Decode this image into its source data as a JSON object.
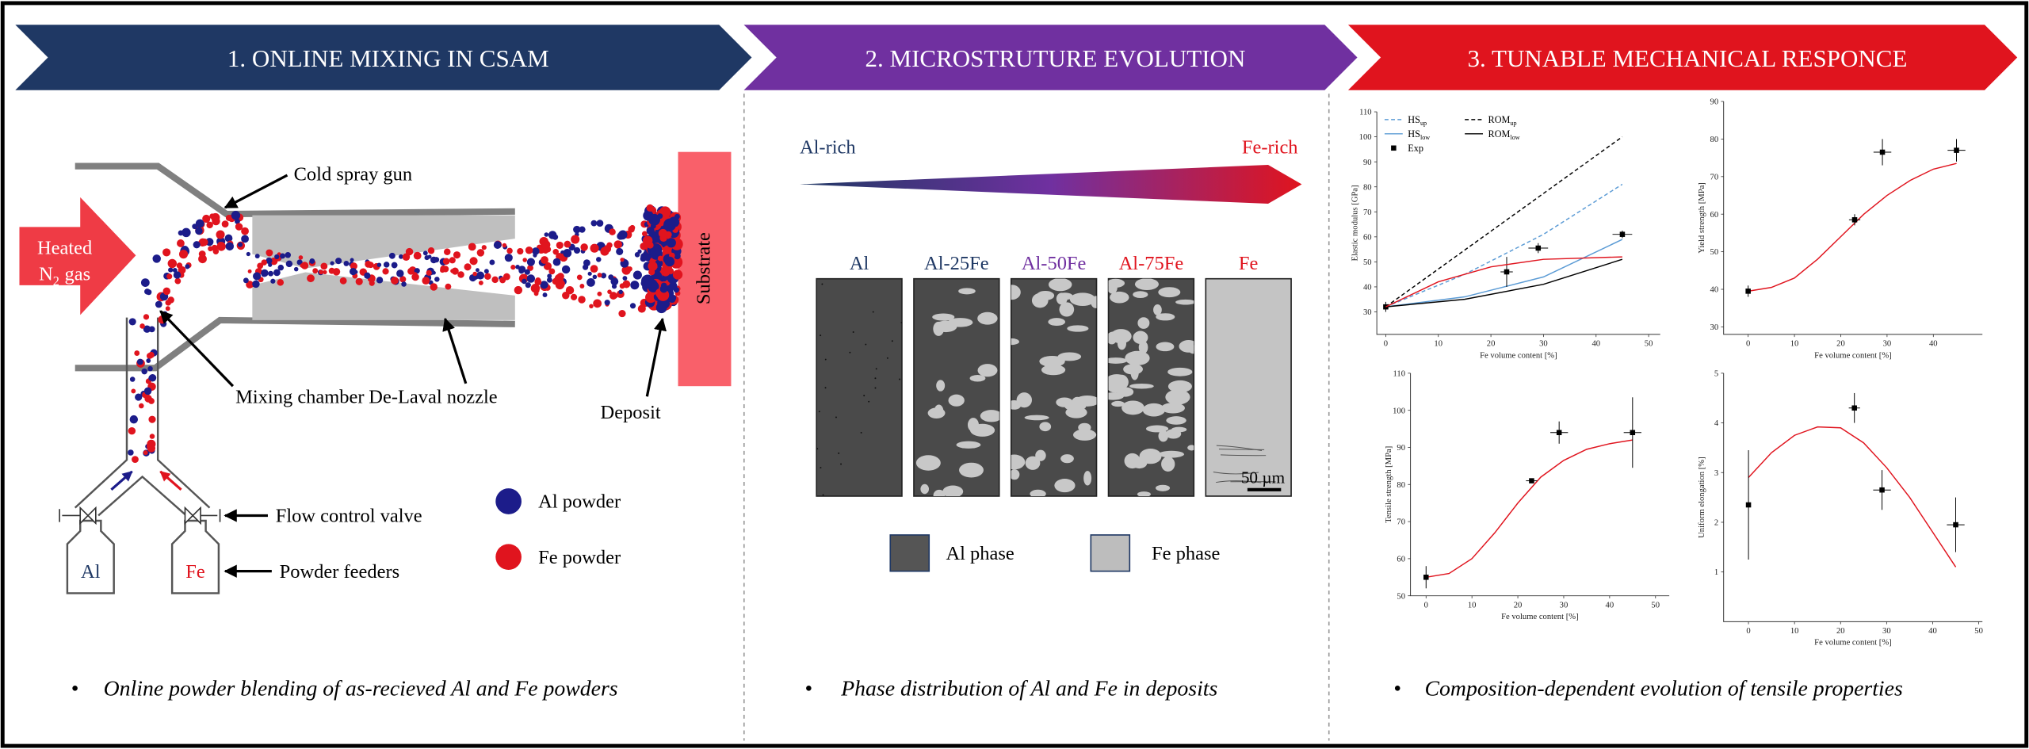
{
  "headers": [
    {
      "title": "1. ONLINE MIXING IN CSAM",
      "color": "#1f3864"
    },
    {
      "title": "2. MICROSTRUTURE EVOLUTION",
      "color": "#7030a0"
    },
    {
      "title": "3. TUNABLE MECHANICAL RESPONCE",
      "color": "#e0141e"
    }
  ],
  "bullets": [
    "Online powder blending of as-recieved Al and Fe powders",
    "Phase distribution of Al and Fe in deposits",
    "Composition-dependent evolution of tensile properties"
  ],
  "mixing": {
    "gas": {
      "line1": "Heated",
      "line2": "N",
      "line2_sub": "2",
      "line2_end": "gas"
    },
    "labels": {
      "gun": "Cold spray gun",
      "chamber": "Mixing chamber",
      "nozzle": "De-Laval nozzle",
      "deposit": "Deposit",
      "substrate": "Substrate",
      "valve": "Flow control valve",
      "feeders": "Powder feeders"
    },
    "feeders": [
      "Al",
      "Fe"
    ],
    "legend": [
      "Al powder",
      "Fe powder"
    ]
  },
  "microstructure": {
    "gradient": [
      "Al-rich",
      "Fe-rich"
    ],
    "samples": [
      "Al",
      "Al-25Fe",
      "Al-50Fe",
      "Al-75Fe",
      "Fe"
    ],
    "scale_bar": "50 µm",
    "phases": [
      "Al phase",
      "Fe phase"
    ]
  },
  "chart_data": [
    {
      "type": "scatter",
      "ylabel": "Elastic modulus [GPa]",
      "xlabel": "Fe volume content [%]",
      "xlim": [
        -1.7,
        52.2
      ],
      "ylim": [
        21,
        110
      ],
      "xticks": [
        0,
        10,
        20,
        30,
        40,
        50
      ],
      "yticks": [
        30,
        40,
        50,
        60,
        70,
        80,
        90,
        100,
        110
      ],
      "legend": "upper left",
      "series": [
        {
          "name": "HS",
          "name_sub": "up",
          "color": "#5b9bd5",
          "mode": "line",
          "dash": true,
          "x": [
            0,
            15,
            30,
            45
          ],
          "values": [
            32,
            45,
            61,
            81
          ]
        },
        {
          "name": "ROM",
          "name_sub": "up",
          "color": "#000000",
          "mode": "line",
          "dash": true,
          "x": [
            0,
            45
          ],
          "values": [
            32,
            100
          ]
        },
        {
          "name": "HS",
          "name_sub": "low",
          "color": "#5b9bd5",
          "mode": "line",
          "dash": false,
          "x": [
            0,
            15,
            30,
            45
          ],
          "values": [
            32,
            36,
            44,
            59
          ]
        },
        {
          "name": "ROM",
          "name_sub": "low",
          "color": "#000000",
          "mode": "line",
          "dash": false,
          "x": [
            0,
            15,
            30,
            45
          ],
          "values": [
            32,
            35,
            41,
            51
          ]
        },
        {
          "name": "Exp",
          "color": "#000000",
          "mode": "markers",
          "x": [
            0,
            23,
            29,
            45
          ],
          "values": [
            32,
            46,
            55.5,
            61
          ],
          "yerr": [
            2,
            6,
            2,
            1.5
          ],
          "xerr": [
            0,
            0.8,
            1.5,
            1.5
          ]
        },
        {
          "color": "#e0141e",
          "mode": "line",
          "dash": false,
          "x": [
            0,
            10,
            20,
            30,
            45
          ],
          "values": [
            32,
            42,
            48,
            51,
            52
          ]
        }
      ]
    },
    {
      "type": "scatter",
      "ylabel": "Yield strength [MPa]",
      "xlabel": "Fe volume content [%]",
      "xlim": [
        -5.3,
        50.6
      ],
      "ylim": [
        28,
        90
      ],
      "xticks": [
        0,
        10,
        20,
        30,
        40
      ],
      "yticks": [
        30,
        40,
        50,
        60,
        70,
        80,
        90
      ],
      "series": [
        {
          "color": "#e0141e",
          "mode": "line",
          "dash": false,
          "x": [
            0,
            5,
            10,
            15,
            20,
            25,
            30,
            35,
            40,
            45
          ],
          "values": [
            39.5,
            40.5,
            43,
            48,
            54,
            60,
            65,
            69,
            72,
            73.5
          ]
        },
        {
          "color": "#000000",
          "mode": "markers",
          "x": [
            0,
            23,
            29,
            45
          ],
          "values": [
            39.5,
            58.5,
            76.5,
            77
          ],
          "yerr": [
            1.5,
            1.5,
            3.5,
            3
          ],
          "xerr": [
            0,
            0.8,
            1.5,
            1.5
          ]
        }
      ]
    },
    {
      "type": "scatter",
      "ylabel": "Tensile strength [MPa]",
      "xlabel": "Fe volume content [%]",
      "xlim": [
        -3.4,
        53
      ],
      "ylim": [
        50,
        110
      ],
      "xticks": [
        0,
        10,
        20,
        30,
        40,
        50
      ],
      "yticks": [
        50,
        60,
        70,
        80,
        90,
        100,
        110
      ],
      "series": [
        {
          "color": "#e0141e",
          "mode": "line",
          "dash": false,
          "x": [
            0,
            5,
            10,
            15,
            20,
            25,
            30,
            35,
            40,
            45
          ],
          "values": [
            55,
            56,
            60,
            67,
            75,
            82,
            86.5,
            89.5,
            91,
            92
          ]
        },
        {
          "color": "#000000",
          "mode": "markers",
          "x": [
            0,
            23,
            29,
            45
          ],
          "values": [
            55,
            81,
            94,
            94
          ],
          "yerr": [
            3,
            0.5,
            3,
            9.5
          ],
          "xerr": [
            0,
            0.8,
            1.5,
            1.5
          ]
        }
      ]
    },
    {
      "type": "scatter",
      "ylabel": "Uniform elongation [%]",
      "xlabel": "Fe volume content [%]",
      "xlim": [
        -5.4,
        50.8
      ],
      "ylim": [
        0,
        5
      ],
      "xticks": [
        0,
        10,
        20,
        30,
        40,
        50
      ],
      "yticks": [
        1,
        2,
        3,
        4,
        5
      ],
      "series": [
        {
          "color": "#e0141e",
          "mode": "line",
          "dash": false,
          "x": [
            0,
            5,
            10,
            15,
            20,
            25,
            30,
            35,
            40,
            45
          ],
          "values": [
            2.9,
            3.4,
            3.75,
            3.92,
            3.9,
            3.6,
            3.1,
            2.5,
            1.8,
            1.1
          ]
        },
        {
          "color": "#000000",
          "mode": "markers",
          "x": [
            0,
            23,
            29,
            45
          ],
          "values": [
            2.35,
            4.3,
            2.65,
            1.95
          ],
          "yerr": [
            1.1,
            0.3,
            0.4,
            0.55
          ],
          "xerr": [
            0,
            0.8,
            1.5,
            1.5
          ]
        }
      ]
    }
  ]
}
